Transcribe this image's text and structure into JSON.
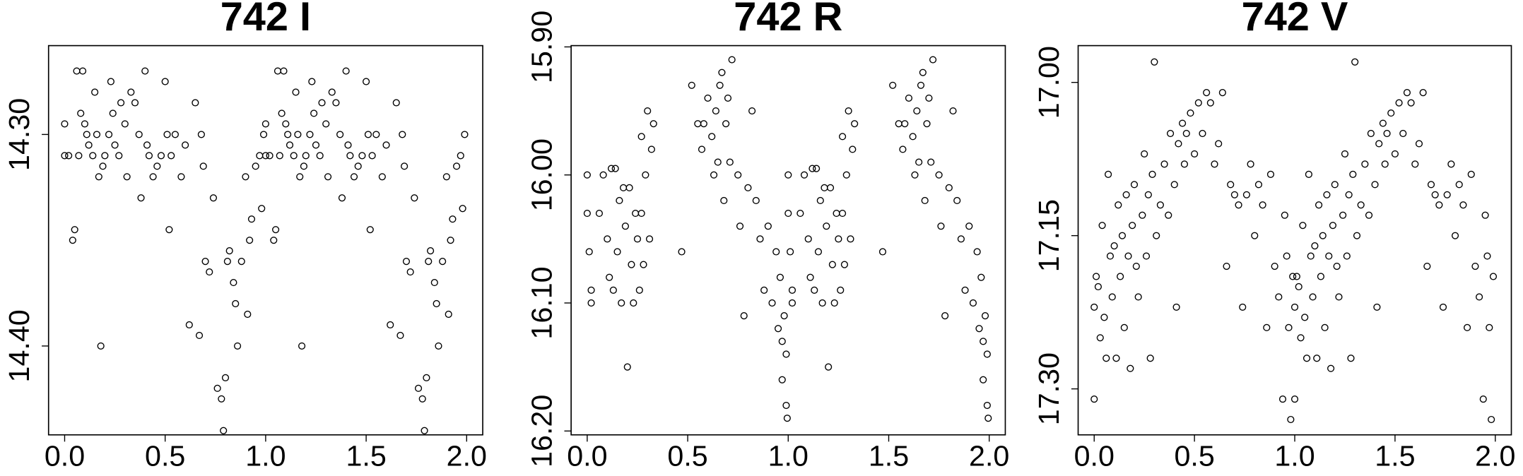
{
  "chart_data": [
    {
      "type": "scatter",
      "title": "742 I",
      "x": [
        0,
        0,
        0.02,
        0.04,
        0.05,
        0.06,
        0.07,
        0.08,
        0.09,
        0.1,
        0.11,
        0.12,
        0.14,
        0.15,
        0.16,
        0.17,
        0.18,
        0.19,
        0.2,
        0.22,
        0.23,
        0.24,
        0.25,
        0.27,
        0.28,
        0.3,
        0.31,
        0.33,
        0.35,
        0.37,
        0.38,
        0.4,
        0.41,
        0.42,
        0.44,
        0.46,
        0.48,
        0.5,
        0.51,
        0.52,
        0.53,
        0.55,
        0.58,
        0.6,
        0.62,
        0.65,
        0.67,
        0.68,
        0.69,
        0.7,
        0.72,
        0.74,
        0.76,
        0.78,
        0.79,
        0.8,
        0.81,
        0.82,
        0.84,
        0.85,
        0.86,
        0.88,
        0.9,
        0.91,
        0.92,
        0.93,
        0.95,
        0.97,
        0.98,
        0.99,
        1,
        1,
        1.02,
        1.04,
        1.05,
        1.06,
        1.07,
        1.08,
        1.09,
        1.1,
        1.11,
        1.12,
        1.14,
        1.15,
        1.16,
        1.17,
        1.18,
        1.19,
        1.2,
        1.22,
        1.23,
        1.24,
        1.25,
        1.27,
        1.28,
        1.3,
        1.31,
        1.33,
        1.35,
        1.37,
        1.38,
        1.4,
        1.41,
        1.42,
        1.44,
        1.46,
        1.48,
        1.5,
        1.51,
        1.52,
        1.53,
        1.55,
        1.58,
        1.6,
        1.62,
        1.65,
        1.67,
        1.68,
        1.69,
        1.7,
        1.72,
        1.74,
        1.76,
        1.78,
        1.79,
        1.8,
        1.81,
        1.82,
        1.84,
        1.85,
        1.86,
        1.88,
        1.9,
        1.91,
        1.92,
        1.93,
        1.95,
        1.97,
        1.98,
        1.99
      ],
      "y": [
        14.31,
        14.295,
        14.31,
        14.35,
        14.345,
        14.27,
        14.31,
        14.29,
        14.27,
        14.295,
        14.3,
        14.305,
        14.31,
        14.28,
        14.3,
        14.32,
        14.4,
        14.315,
        14.31,
        14.3,
        14.275,
        14.29,
        14.305,
        14.31,
        14.285,
        14.295,
        14.32,
        14.28,
        14.285,
        14.3,
        14.33,
        14.27,
        14.305,
        14.31,
        14.32,
        14.315,
        14.31,
        14.275,
        14.3,
        14.345,
        14.31,
        14.3,
        14.32,
        14.305,
        14.39,
        14.285,
        14.395,
        14.3,
        14.315,
        14.36,
        14.365,
        14.33,
        14.42,
        14.425,
        14.44,
        14.415,
        14.36,
        14.355,
        14.37,
        14.38,
        14.4,
        14.36,
        14.32,
        14.385,
        14.35,
        14.34,
        14.315,
        14.31,
        14.335,
        14.3,
        14.31,
        14.295,
        14.31,
        14.35,
        14.345,
        14.27,
        14.31,
        14.29,
        14.27,
        14.295,
        14.3,
        14.305,
        14.31,
        14.28,
        14.3,
        14.32,
        14.4,
        14.315,
        14.31,
        14.3,
        14.275,
        14.29,
        14.305,
        14.31,
        14.285,
        14.295,
        14.32,
        14.28,
        14.285,
        14.3,
        14.33,
        14.27,
        14.305,
        14.31,
        14.32,
        14.315,
        14.31,
        14.275,
        14.3,
        14.345,
        14.31,
        14.3,
        14.32,
        14.305,
        14.39,
        14.285,
        14.395,
        14.3,
        14.315,
        14.36,
        14.365,
        14.33,
        14.42,
        14.425,
        14.44,
        14.415,
        14.36,
        14.355,
        14.37,
        14.38,
        14.4,
        14.36,
        14.32,
        14.385,
        14.35,
        14.34,
        14.315,
        14.31,
        14.335,
        14.3
      ],
      "xlim": [
        -0.08,
        2.08
      ],
      "ylim": [
        14.442,
        14.258
      ],
      "xticks": [
        {
          "value": 0,
          "label": "0.0"
        },
        {
          "value": 0.5,
          "label": "0.5"
        },
        {
          "value": 1,
          "label": "1.0"
        },
        {
          "value": 1.5,
          "label": "1.5"
        },
        {
          "value": 2,
          "label": "2.0"
        }
      ],
      "yticks": [
        {
          "value": 14.3,
          "label": "14.30"
        },
        {
          "value": 14.4,
          "label": "14.40"
        }
      ],
      "color": "#000000"
    },
    {
      "type": "scatter",
      "title": "742 R",
      "x": [
        0,
        0,
        0.01,
        0.02,
        0.02,
        0.06,
        0.08,
        0.1,
        0.11,
        0.12,
        0.13,
        0.14,
        0.15,
        0.16,
        0.17,
        0.18,
        0.19,
        0.2,
        0.21,
        0.22,
        0.23,
        0.24,
        0.25,
        0.26,
        0.27,
        0.27,
        0.28,
        0.29,
        0.3,
        0.31,
        0.32,
        0.33,
        0.47,
        0.52,
        0.55,
        0.57,
        0.58,
        0.6,
        0.62,
        0.63,
        0.64,
        0.65,
        0.66,
        0.67,
        0.68,
        0.69,
        0.7,
        0.71,
        0.72,
        0.75,
        0.76,
        0.78,
        0.8,
        0.82,
        0.84,
        0.86,
        0.88,
        0.9,
        0.92,
        0.94,
        0.95,
        0.96,
        0.97,
        0.97,
        0.98,
        0.99,
        0.99,
        0.995,
        1,
        1,
        1.01,
        1.02,
        1.02,
        1.06,
        1.08,
        1.1,
        1.11,
        1.12,
        1.13,
        1.14,
        1.15,
        1.16,
        1.17,
        1.18,
        1.19,
        1.2,
        1.21,
        1.22,
        1.23,
        1.24,
        1.25,
        1.26,
        1.27,
        1.27,
        1.28,
        1.29,
        1.3,
        1.31,
        1.32,
        1.33,
        1.47,
        1.52,
        1.55,
        1.57,
        1.58,
        1.6,
        1.62,
        1.63,
        1.64,
        1.65,
        1.66,
        1.67,
        1.68,
        1.69,
        1.7,
        1.71,
        1.72,
        1.75,
        1.76,
        1.78,
        1.8,
        1.82,
        1.84,
        1.86,
        1.88,
        1.9,
        1.92,
        1.94,
        1.95,
        1.96,
        1.97,
        1.97,
        1.98,
        1.99,
        1.99,
        1.995
      ],
      "y": [
        16,
        16.03,
        16.06,
        16.09,
        16.1,
        16.03,
        16,
        16.05,
        16.08,
        15.995,
        16.09,
        15.995,
        16.06,
        16.02,
        16.1,
        16.01,
        16.04,
        16.15,
        16.01,
        16.07,
        16.1,
        16.03,
        16.05,
        16.09,
        15.97,
        16.03,
        16.07,
        16,
        15.95,
        16.05,
        15.98,
        15.96,
        16.06,
        15.93,
        15.96,
        15.98,
        15.96,
        15.94,
        15.97,
        16,
        15.95,
        15.99,
        15.93,
        15.92,
        16.02,
        15.96,
        15.94,
        15.99,
        15.91,
        16,
        16.04,
        16.11,
        16.01,
        15.95,
        16.02,
        16.05,
        16.09,
        16.04,
        16.1,
        16.06,
        16.12,
        16.08,
        16.13,
        16.16,
        16.11,
        16.14,
        16.18,
        16.19,
        16,
        16.03,
        16.06,
        16.09,
        16.1,
        16.03,
        16,
        16.05,
        16.08,
        15.995,
        16.09,
        15.995,
        16.06,
        16.02,
        16.1,
        16.01,
        16.04,
        16.15,
        16.01,
        16.07,
        16.1,
        16.03,
        16.05,
        16.09,
        15.97,
        16.03,
        16.07,
        16,
        15.95,
        16.05,
        15.98,
        15.96,
        16.06,
        15.93,
        15.96,
        15.98,
        15.96,
        15.94,
        15.97,
        16,
        15.95,
        15.99,
        15.93,
        15.92,
        16.02,
        15.96,
        15.94,
        15.99,
        15.91,
        16,
        16.04,
        16.11,
        16.01,
        15.95,
        16.02,
        16.05,
        16.09,
        16.04,
        16.1,
        16.06,
        16.12,
        16.08,
        16.13,
        16.16,
        16.11,
        16.14,
        16.18,
        16.19
      ],
      "xlim": [
        -0.08,
        2.08
      ],
      "ylim": [
        16.203,
        15.899
      ],
      "xticks": [
        {
          "value": 0,
          "label": "0.0"
        },
        {
          "value": 0.5,
          "label": "0.5"
        },
        {
          "value": 1,
          "label": "1.0"
        },
        {
          "value": 1.5,
          "label": "1.5"
        },
        {
          "value": 2,
          "label": "2.0"
        }
      ],
      "yticks": [
        {
          "value": 15.9,
          "label": "15.90"
        },
        {
          "value": 16,
          "label": "16.00"
        },
        {
          "value": 16.1,
          "label": "16.10"
        },
        {
          "value": 16.2,
          "label": "16.20"
        }
      ],
      "color": "#000000"
    },
    {
      "type": "scatter",
      "title": "742 V",
      "x": [
        0,
        0,
        0.01,
        0.02,
        0.03,
        0.04,
        0.05,
        0.06,
        0.07,
        0.08,
        0.09,
        0.1,
        0.11,
        0.12,
        0.13,
        0.14,
        0.15,
        0.16,
        0.17,
        0.18,
        0.19,
        0.2,
        0.21,
        0.22,
        0.24,
        0.25,
        0.26,
        0.27,
        0.28,
        0.29,
        0.3,
        0.31,
        0.33,
        0.35,
        0.37,
        0.38,
        0.4,
        0.41,
        0.42,
        0.44,
        0.45,
        0.46,
        0.48,
        0.5,
        0.52,
        0.54,
        0.56,
        0.58,
        0.6,
        0.62,
        0.64,
        0.66,
        0.68,
        0.7,
        0.72,
        0.74,
        0.76,
        0.78,
        0.8,
        0.82,
        0.84,
        0.86,
        0.88,
        0.9,
        0.92,
        0.94,
        0.95,
        0.96,
        0.97,
        0.98,
        0.99,
        1,
        1,
        1.01,
        1.02,
        1.03,
        1.04,
        1.05,
        1.06,
        1.07,
        1.08,
        1.09,
        1.1,
        1.11,
        1.12,
        1.13,
        1.14,
        1.15,
        1.16,
        1.17,
        1.18,
        1.19,
        1.2,
        1.21,
        1.22,
        1.24,
        1.25,
        1.26,
        1.27,
        1.28,
        1.29,
        1.3,
        1.31,
        1.33,
        1.35,
        1.37,
        1.38,
        1.4,
        1.41,
        1.42,
        1.44,
        1.45,
        1.46,
        1.48,
        1.5,
        1.52,
        1.54,
        1.56,
        1.58,
        1.6,
        1.62,
        1.64,
        1.66,
        1.68,
        1.7,
        1.72,
        1.74,
        1.76,
        1.78,
        1.8,
        1.82,
        1.84,
        1.86,
        1.88,
        1.9,
        1.92,
        1.94,
        1.95,
        1.96,
        1.97,
        1.98,
        1.99
      ],
      "y": [
        17.31,
        17.22,
        17.19,
        17.2,
        17.25,
        17.14,
        17.23,
        17.27,
        17.09,
        17.17,
        17.21,
        17.16,
        17.27,
        17.12,
        17.19,
        17.15,
        17.24,
        17.11,
        17.17,
        17.28,
        17.14,
        17.1,
        17.18,
        17.21,
        17.13,
        17.07,
        17.17,
        17.11,
        17.27,
        17.09,
        16.98,
        17.15,
        17.12,
        17.08,
        17.13,
        17.05,
        17.1,
        17.22,
        17.06,
        17.04,
        17.08,
        17.05,
        17.03,
        17.07,
        17.02,
        17.05,
        17.01,
        17.02,
        17.08,
        17.06,
        17.01,
        17.18,
        17.1,
        17.11,
        17.12,
        17.22,
        17.11,
        17.08,
        17.15,
        17.1,
        17.12,
        17.24,
        17.09,
        17.18,
        17.21,
        17.31,
        17.13,
        17.17,
        17.24,
        17.33,
        17.19,
        17.31,
        17.22,
        17.19,
        17.2,
        17.25,
        17.14,
        17.23,
        17.27,
        17.09,
        17.17,
        17.21,
        17.16,
        17.27,
        17.12,
        17.19,
        17.15,
        17.24,
        17.11,
        17.17,
        17.28,
        17.14,
        17.1,
        17.18,
        17.21,
        17.13,
        17.07,
        17.17,
        17.11,
        17.27,
        17.09,
        16.98,
        17.15,
        17.12,
        17.08,
        17.13,
        17.05,
        17.1,
        17.22,
        17.06,
        17.04,
        17.08,
        17.05,
        17.03,
        17.07,
        17.02,
        17.05,
        17.01,
        17.02,
        17.08,
        17.06,
        17.01,
        17.18,
        17.1,
        17.11,
        17.12,
        17.22,
        17.11,
        17.08,
        17.15,
        17.1,
        17.12,
        17.24,
        17.09,
        17.18,
        17.21,
        17.31,
        17.13,
        17.17,
        17.24,
        17.33,
        17.19
      ],
      "xlim": [
        -0.08,
        2.08
      ],
      "ylim": [
        17.345,
        16.964
      ],
      "xticks": [
        {
          "value": 0,
          "label": "0.0"
        },
        {
          "value": 0.5,
          "label": "0.5"
        },
        {
          "value": 1,
          "label": "1.0"
        },
        {
          "value": 1.5,
          "label": "1.5"
        },
        {
          "value": 2,
          "label": "2.0"
        }
      ],
      "yticks": [
        {
          "value": 17,
          "label": "17.00"
        },
        {
          "value": 17.15,
          "label": "17.15"
        },
        {
          "value": 17.3,
          "label": "17.30"
        }
      ],
      "color": "#000000"
    }
  ]
}
